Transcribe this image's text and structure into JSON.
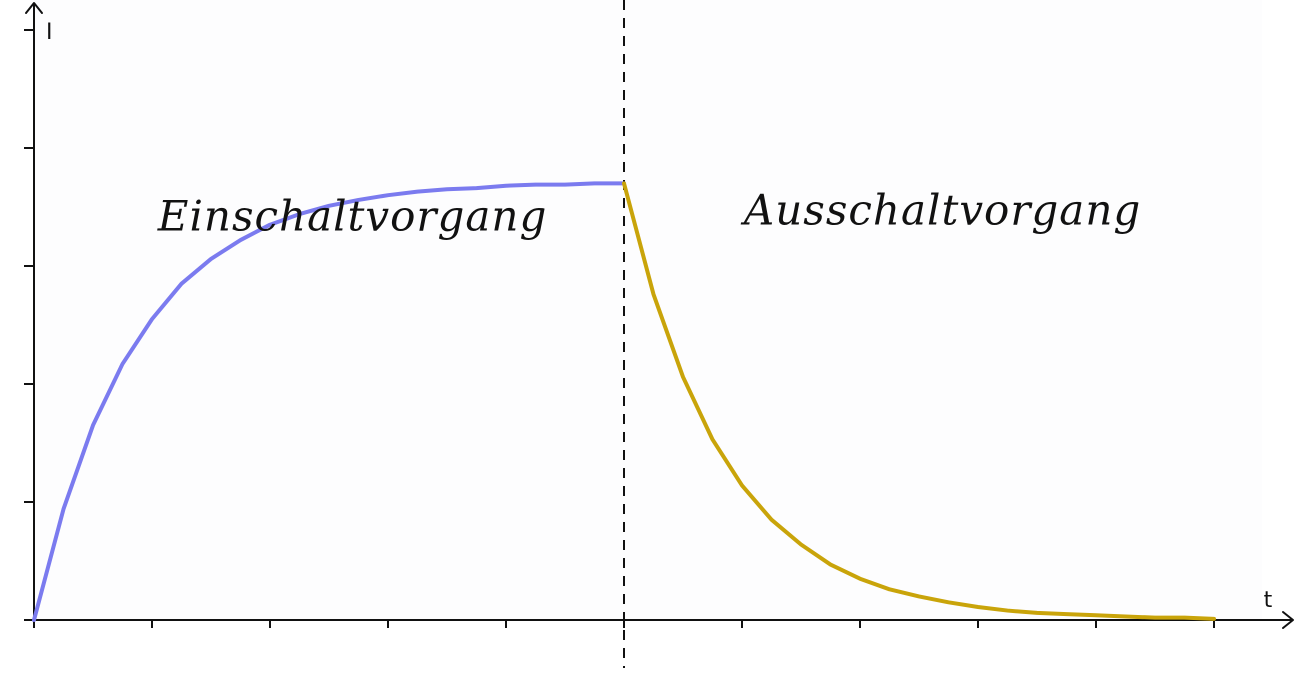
{
  "chart_data": {
    "type": "line",
    "title": "",
    "xlabel": "t",
    "ylabel": "I",
    "xlim": [
      0,
      10
    ],
    "ylim": [
      0,
      5
    ],
    "x_ticks": [
      0,
      1,
      2,
      3,
      4,
      5,
      6,
      7,
      8,
      9,
      10
    ],
    "y_ticks": [
      0,
      1,
      2,
      3,
      4,
      5
    ],
    "tick_labels_visible": false,
    "grid": false,
    "legend": "none",
    "divider_x": 5,
    "divider_style": "dashed",
    "annotations": [
      {
        "text": "Einschaltvorgang",
        "x": 2.7,
        "y": 3.3
      },
      {
        "text": "Ausschaltvorgang",
        "x": 7.7,
        "y": 3.35
      }
    ],
    "series": [
      {
        "color": "#7b7bef",
        "x": [
          0,
          0.25,
          0.5,
          0.75,
          1,
          1.25,
          1.5,
          1.75,
          2,
          2.25,
          2.5,
          2.75,
          3,
          3.25,
          3.5,
          3.75,
          4,
          4.25,
          4.5,
          4.75,
          5
        ],
        "y": [
          0,
          0.94,
          1.65,
          2.17,
          2.55,
          2.85,
          3.06,
          3.22,
          3.35,
          3.44,
          3.51,
          3.56,
          3.6,
          3.63,
          3.65,
          3.66,
          3.68,
          3.69,
          3.69,
          3.7,
          3.7
        ]
      },
      {
        "color": "#c9a40a",
        "x": [
          5,
          5.25,
          5.5,
          5.75,
          6,
          6.25,
          6.5,
          6.75,
          7,
          7.25,
          7.5,
          7.75,
          8,
          8.25,
          8.5,
          8.75,
          9,
          9.25,
          9.5,
          9.75,
          10
        ],
        "y": [
          3.7,
          2.76,
          2.06,
          1.53,
          1.14,
          0.85,
          0.64,
          0.47,
          0.35,
          0.26,
          0.2,
          0.15,
          0.11,
          0.08,
          0.06,
          0.05,
          0.04,
          0.03,
          0.02,
          0.02,
          0.01
        ]
      }
    ],
    "colors": {
      "axis": "#111111",
      "plot_fill": "#fdfdfe"
    }
  }
}
